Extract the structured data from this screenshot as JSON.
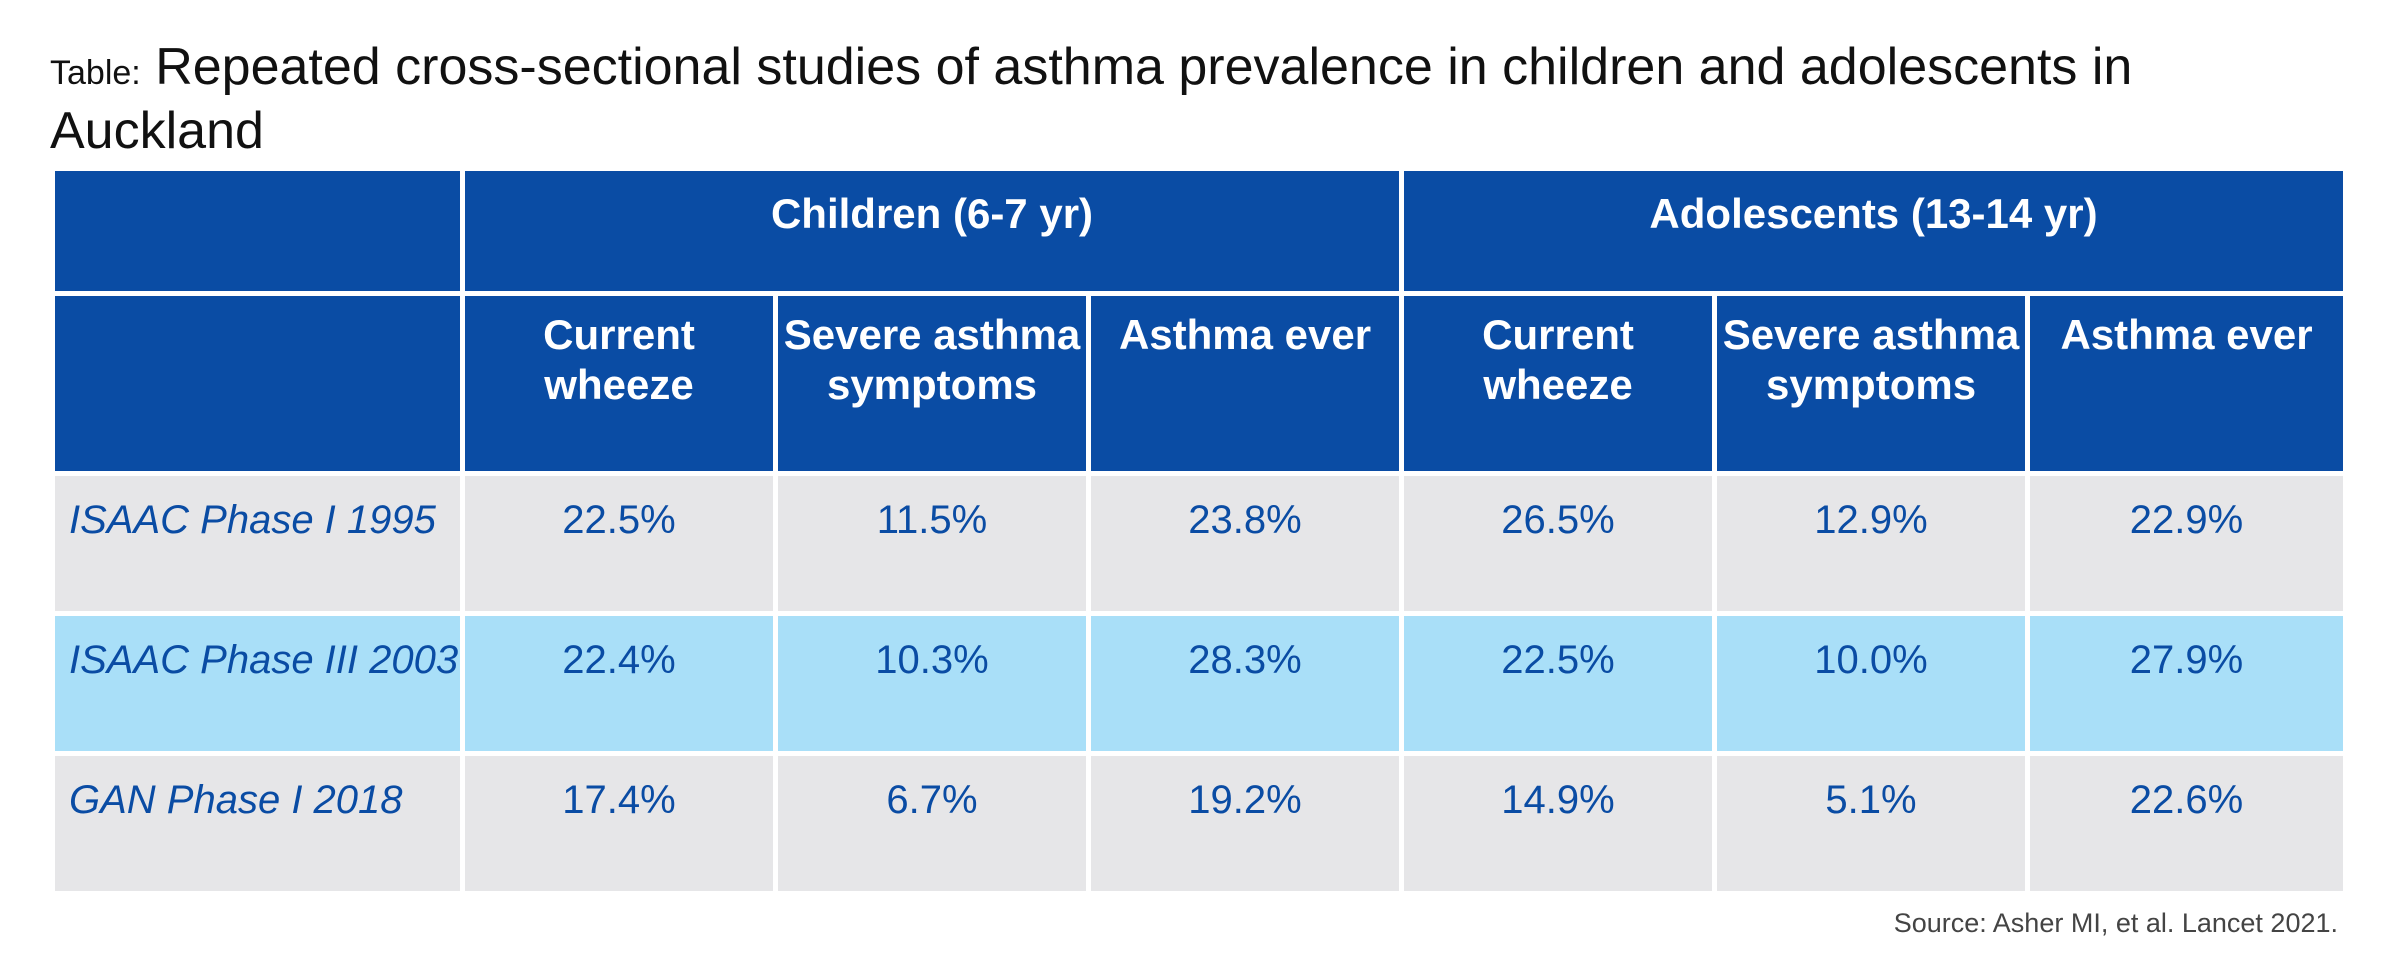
{
  "title": {
    "prefix": "Table:",
    "text": "Repeated cross-sectional studies of asthma prevalence in children and adolescents in Auckland"
  },
  "table": {
    "groups": [
      {
        "label": "Children (6-7 yr)"
      },
      {
        "label": "Adolescents (13-14 yr)"
      }
    ],
    "columns": [
      "Current wheeze",
      "Severe asthma symptoms",
      "Asthma ever",
      "Current wheeze",
      "Severe asthma symptoms",
      "Asthma ever"
    ],
    "rows": [
      {
        "label": "ISAAC Phase I 1995",
        "values": [
          "22.5%",
          "11.5%",
          "23.8%",
          "26.5%",
          "12.9%",
          "22.9%"
        ]
      },
      {
        "label": "ISAAC Phase III 2003",
        "values": [
          "22.4%",
          "10.3%",
          "28.3%",
          "22.5%",
          "10.0%",
          "27.9%"
        ]
      },
      {
        "label": "GAN Phase I 2018",
        "values": [
          "17.4%",
          "6.7%",
          "19.2%",
          "14.9%",
          "5.1%",
          "22.6%"
        ]
      }
    ]
  },
  "source": "Source: Asher MI, et al. Lancet 2021.",
  "colors": {
    "header_bg": "#0a4ca4",
    "row_grey": "#e6e6e8",
    "row_blue": "#a9dff8",
    "value_text": "#0a4ca4"
  }
}
